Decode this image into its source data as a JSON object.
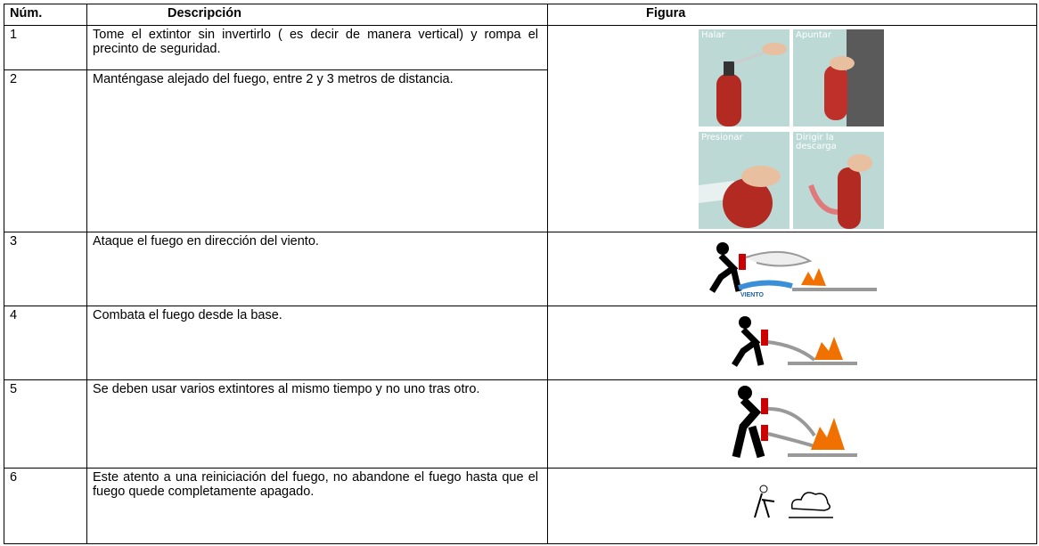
{
  "table": {
    "headers": [
      "Núm.",
      "Descripción",
      "Figura"
    ],
    "rows": [
      {
        "num": "1",
        "description": "Tome el extintor sin invertirlo ( es decir de manera vertical)  y rompa el precinto de seguridad."
      },
      {
        "num": "2",
        "description": "Manténgase alejado del fuego, entre 2 y 3 metros de distancia."
      },
      {
        "num": "3",
        "description": "Ataque el fuego en dirección del viento."
      },
      {
        "num": "4",
        "description": "Combata el fuego desde la base."
      },
      {
        "num": "5",
        "description": "Se deben usar varios extintores al mismo tiempo y no uno tras otro."
      },
      {
        "num": "6",
        "description": "Este atento a una reiniciación del fuego, no abandone el fuego hasta que el fuego  quede completamente apagado."
      }
    ]
  },
  "figures": {
    "steps": [
      "Halar",
      "Apuntar",
      "Presionar",
      "Dirigir la descarga"
    ],
    "wind": "VIENTO"
  }
}
